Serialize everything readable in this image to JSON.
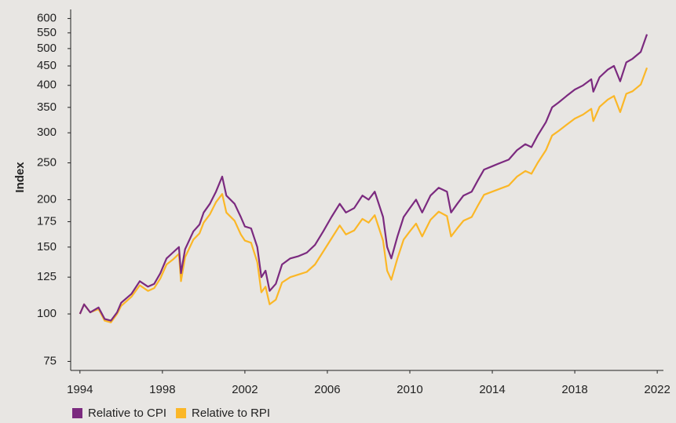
{
  "chart_data": {
    "type": "line",
    "y_label": "Index",
    "log_scale": true,
    "xlim": [
      1993.55,
      2022.3
    ],
    "xticks": [
      1994,
      1998,
      2002,
      2006,
      2010,
      2014,
      2018,
      2022
    ],
    "ylim": [
      71,
      634
    ],
    "yticks": [
      75,
      100,
      125,
      150,
      175,
      200,
      250,
      300,
      350,
      400,
      450,
      500,
      550,
      600
    ],
    "x": [
      1994.0,
      1994.2,
      1994.5,
      1994.9,
      1995.2,
      1995.5,
      1995.8,
      1996.0,
      1996.5,
      1996.9,
      1997.3,
      1997.6,
      1997.9,
      1998.2,
      1998.5,
      1998.8,
      1998.9,
      1999.1,
      1999.5,
      1999.8,
      2000.0,
      2000.3,
      2000.6,
      2000.9,
      2001.1,
      2001.5,
      2001.8,
      2002.0,
      2002.3,
      2002.6,
      2002.8,
      2003.0,
      2003.2,
      2003.5,
      2003.8,
      2004.2,
      2004.6,
      2005.0,
      2005.4,
      2005.8,
      2006.2,
      2006.6,
      2006.9,
      2007.3,
      2007.7,
      2008.0,
      2008.3,
      2008.7,
      2008.9,
      2009.1,
      2009.4,
      2009.7,
      2010.0,
      2010.3,
      2010.6,
      2011.0,
      2011.4,
      2011.8,
      2012.0,
      2012.3,
      2012.6,
      2013.0,
      2013.3,
      2013.6,
      2014.0,
      2014.4,
      2014.8,
      2015.2,
      2015.6,
      2015.9,
      2016.2,
      2016.6,
      2016.9,
      2017.2,
      2017.6,
      2018.0,
      2018.4,
      2018.8,
      2018.9,
      2019.2,
      2019.6,
      2019.9,
      2020.2,
      2020.5,
      2020.8,
      2021.2,
      2021.5
    ],
    "series": [
      {
        "name": "Relative to CPI",
        "color": "#7b2a7f",
        "values": [
          100,
          106,
          101,
          104,
          97,
          96,
          101,
          107,
          113,
          122,
          118,
          120,
          128,
          140,
          145,
          150,
          128,
          148,
          165,
          172,
          185,
          195,
          210,
          230,
          205,
          195,
          180,
          170,
          168,
          150,
          125,
          130,
          115,
          120,
          135,
          140,
          142,
          145,
          152,
          165,
          180,
          195,
          185,
          190,
          205,
          200,
          210,
          180,
          150,
          140,
          160,
          180,
          190,
          200,
          185,
          205,
          215,
          210,
          185,
          195,
          205,
          210,
          225,
          240,
          245,
          250,
          255,
          270,
          280,
          275,
          295,
          320,
          350,
          360,
          375,
          390,
          400,
          415,
          385,
          420,
          440,
          450,
          410,
          460,
          470,
          490,
          545
        ]
      },
      {
        "name": "Relative to RPI",
        "color": "#fbb727",
        "values": [
          100,
          106,
          101,
          103,
          96,
          95,
          100,
          105,
          111,
          119,
          115,
          117,
          124,
          135,
          139,
          144,
          122,
          141,
          157,
          163,
          174,
          183,
          197,
          207,
          185,
          176,
          162,
          156,
          154,
          137,
          114,
          118,
          106,
          109,
          121,
          125,
          127,
          129,
          135,
          146,
          158,
          171,
          162,
          166,
          178,
          174,
          182,
          156,
          130,
          123,
          140,
          157,
          165,
          173,
          160,
          177,
          186,
          181,
          160,
          168,
          176,
          180,
          193,
          206,
          210,
          214,
          218,
          230,
          238,
          234,
          250,
          270,
          295,
          303,
          315,
          327,
          335,
          347,
          322,
          351,
          367,
          375,
          340,
          380,
          386,
          402,
          445
        ]
      }
    ]
  }
}
